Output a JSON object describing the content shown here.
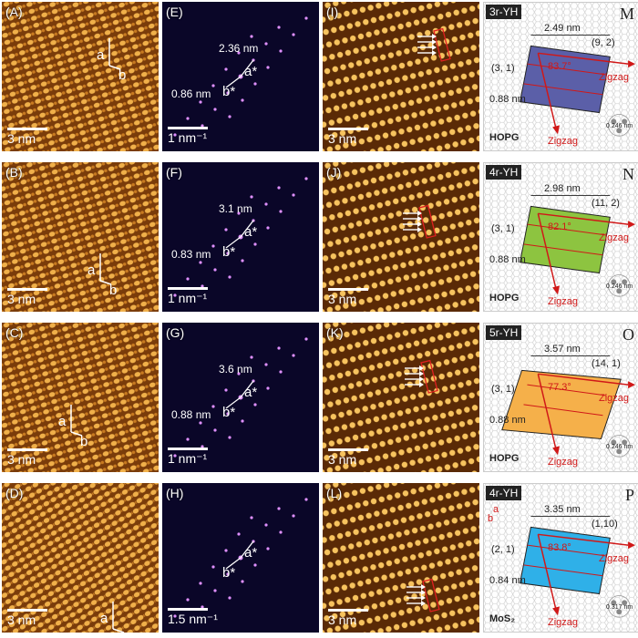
{
  "rows": [
    {
      "stm": {
        "label": "(A)",
        "scale": "3 nm",
        "vec_a": "a",
        "vec_b": "b"
      },
      "fft": {
        "label": "(E)",
        "scale": "1 nm⁻¹",
        "d1": "2.36 nm",
        "d2": "0.86 nm",
        "astar": "a*",
        "bstar": "b*"
      },
      "hr": {
        "label": "(I)",
        "scale": "3 nm"
      },
      "model": {
        "tag": "3r-YH",
        "letter": "M",
        "len": "2.49 nm",
        "idx1": "(9, 2)",
        "idx2": "(3, 1)",
        "angle": "83.7°",
        "width": "0.88 nm",
        "zz1": "Zigzag",
        "zz2": "Zigzag",
        "substrate": "HOPG",
        "lattice": "0.246 nm"
      },
      "colors": {
        "fill": "#5b5fa8"
      }
    },
    {
      "stm": {
        "label": "(B)",
        "scale": "3 nm",
        "vec_a": "a",
        "vec_b": "b"
      },
      "fft": {
        "label": "(F)",
        "scale": "1 nm⁻¹",
        "d1": "3.1 nm",
        "d2": "0.83 nm",
        "astar": "a*",
        "bstar": "b*"
      },
      "hr": {
        "label": "(J)",
        "scale": "3 nm"
      },
      "model": {
        "tag": "4r-YH",
        "letter": "N",
        "len": "2.98 nm",
        "idx1": "(11, 2)",
        "idx2": "(3, 1)",
        "angle": "82.1°",
        "width": "0.88 nm",
        "zz1": "Zigzag",
        "zz2": "Zigzag",
        "substrate": "HOPG",
        "lattice": "0.246 nm"
      },
      "colors": {
        "fill": "#8dc440"
      }
    },
    {
      "stm": {
        "label": "(C)",
        "scale": "3 nm",
        "vec_a": "a",
        "vec_b": "b"
      },
      "fft": {
        "label": "(G)",
        "scale": "1 nm⁻¹",
        "d1": "3.6 nm",
        "d2": "0.88 nm",
        "astar": "a*",
        "bstar": "b*"
      },
      "hr": {
        "label": "(K)",
        "scale": "3 nm"
      },
      "model": {
        "tag": "5r-YH",
        "letter": "O",
        "len": "3.57 nm",
        "idx1": "(14, 1)",
        "idx2": "(3, 1)",
        "angle": "77.3°",
        "width": "0.88 nm",
        "zz1": "Zigzag",
        "zz2": "Zigzag",
        "substrate": "HOPG",
        "lattice": "0.246 nm"
      },
      "colors": {
        "fill": "#f5b04a"
      }
    },
    {
      "stm": {
        "label": "(D)",
        "scale": "3 nm",
        "vec_a": "a",
        "vec_b": "b"
      },
      "fft": {
        "label": "(H)",
        "scale": "1.5 nm⁻¹",
        "d1": "",
        "d2": "",
        "astar": "a*",
        "bstar": "b*"
      },
      "hr": {
        "label": "(L)",
        "scale": "3 nm"
      },
      "model": {
        "tag": "4r-YH",
        "letter": "P",
        "len": "3.35 nm",
        "idx1": "(1,10)",
        "idx2": "(2, 1)",
        "angle": "83.8°",
        "width": "0.84 nm",
        "zz1": "Zigzag",
        "zz2": "Zigzag",
        "substrate": "MoS₂",
        "lattice": "0.317 nm",
        "ia": "a",
        "ib": "b"
      },
      "colors": {
        "fill": "#2fb0e8"
      }
    }
  ]
}
